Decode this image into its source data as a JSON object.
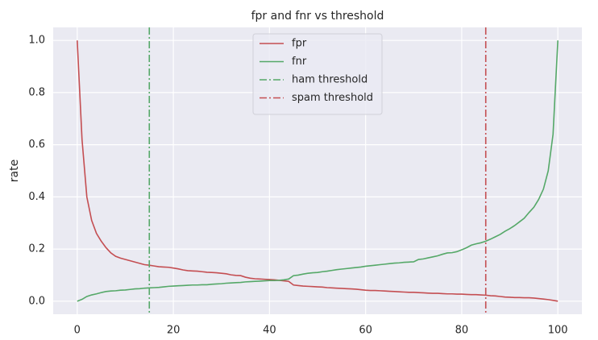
{
  "chart_data": {
    "type": "line",
    "title": "fpr and fnr vs threshold",
    "ylabel": "rate",
    "x": [
      0,
      1,
      2,
      3,
      4,
      5,
      6,
      7,
      8,
      9,
      10,
      11,
      12,
      13,
      14,
      15,
      16,
      17,
      18,
      19,
      20,
      21,
      22,
      23,
      24,
      25,
      26,
      27,
      28,
      29,
      30,
      31,
      32,
      33,
      34,
      35,
      36,
      37,
      38,
      39,
      40,
      41,
      42,
      43,
      44,
      45,
      46,
      47,
      48,
      49,
      50,
      51,
      52,
      53,
      54,
      55,
      56,
      57,
      58,
      59,
      60,
      61,
      62,
      63,
      64,
      65,
      66,
      67,
      68,
      69,
      70,
      71,
      72,
      73,
      74,
      75,
      76,
      77,
      78,
      79,
      80,
      81,
      82,
      83,
      84,
      85,
      86,
      87,
      88,
      89,
      90,
      91,
      92,
      93,
      94,
      95,
      96,
      97,
      98,
      99,
      100
    ],
    "series": [
      {
        "name": "fpr",
        "color": "#c44e52",
        "values": [
          1.0,
          0.62,
          0.4,
          0.31,
          0.26,
          0.23,
          0.205,
          0.185,
          0.172,
          0.165,
          0.16,
          0.155,
          0.15,
          0.145,
          0.14,
          0.138,
          0.135,
          0.132,
          0.131,
          0.13,
          0.127,
          0.124,
          0.12,
          0.117,
          0.116,
          0.115,
          0.113,
          0.111,
          0.11,
          0.109,
          0.107,
          0.105,
          0.101,
          0.099,
          0.098,
          0.092,
          0.088,
          0.086,
          0.085,
          0.084,
          0.083,
          0.082,
          0.08,
          0.078,
          0.076,
          0.062,
          0.06,
          0.058,
          0.057,
          0.056,
          0.055,
          0.054,
          0.052,
          0.051,
          0.05,
          0.049,
          0.048,
          0.047,
          0.046,
          0.044,
          0.042,
          0.041,
          0.041,
          0.04,
          0.039,
          0.038,
          0.037,
          0.036,
          0.035,
          0.034,
          0.034,
          0.033,
          0.032,
          0.031,
          0.03,
          0.03,
          0.029,
          0.028,
          0.028,
          0.027,
          0.027,
          0.026,
          0.025,
          0.025,
          0.024,
          0.023,
          0.021,
          0.02,
          0.018,
          0.016,
          0.015,
          0.014,
          0.014,
          0.013,
          0.013,
          0.012,
          0.01,
          0.008,
          0.006,
          0.003,
          0.0
        ]
      },
      {
        "name": "fnr",
        "color": "#55a868",
        "values": [
          0.0,
          0.007,
          0.018,
          0.024,
          0.028,
          0.033,
          0.037,
          0.039,
          0.04,
          0.042,
          0.043,
          0.045,
          0.047,
          0.048,
          0.05,
          0.051,
          0.052,
          0.053,
          0.055,
          0.057,
          0.058,
          0.059,
          0.06,
          0.061,
          0.062,
          0.062,
          0.063,
          0.063,
          0.065,
          0.066,
          0.067,
          0.069,
          0.07,
          0.071,
          0.072,
          0.074,
          0.075,
          0.076,
          0.077,
          0.078,
          0.079,
          0.079,
          0.08,
          0.082,
          0.085,
          0.098,
          0.1,
          0.104,
          0.107,
          0.109,
          0.11,
          0.113,
          0.115,
          0.118,
          0.121,
          0.123,
          0.125,
          0.127,
          0.129,
          0.131,
          0.134,
          0.136,
          0.138,
          0.14,
          0.142,
          0.144,
          0.146,
          0.147,
          0.149,
          0.15,
          0.151,
          0.16,
          0.162,
          0.166,
          0.17,
          0.174,
          0.18,
          0.185,
          0.186,
          0.19,
          0.197,
          0.205,
          0.215,
          0.22,
          0.224,
          0.23,
          0.238,
          0.247,
          0.256,
          0.268,
          0.278,
          0.29,
          0.304,
          0.318,
          0.34,
          0.36,
          0.39,
          0.43,
          0.5,
          0.64,
          1.0
        ]
      }
    ],
    "vlines": [
      {
        "name": "ham threshold",
        "x": 15,
        "color": "#55a868",
        "style": "dashdot"
      },
      {
        "name": "spam threshold",
        "x": 85,
        "color": "#c44e52",
        "style": "dashdot"
      }
    ],
    "xlim": [
      -5,
      105
    ],
    "xticks": [
      0,
      20,
      40,
      60,
      80,
      100
    ],
    "ylim": [
      -0.05,
      1.05
    ],
    "yticks": [
      {
        "value": 0,
        "label": "0.0"
      },
      0.2,
      0.4,
      0.6,
      0.8,
      {
        "value": 1,
        "label": "1.0"
      }
    ],
    "grid": true,
    "legend": "upper center",
    "background": "#eaeaf2"
  }
}
